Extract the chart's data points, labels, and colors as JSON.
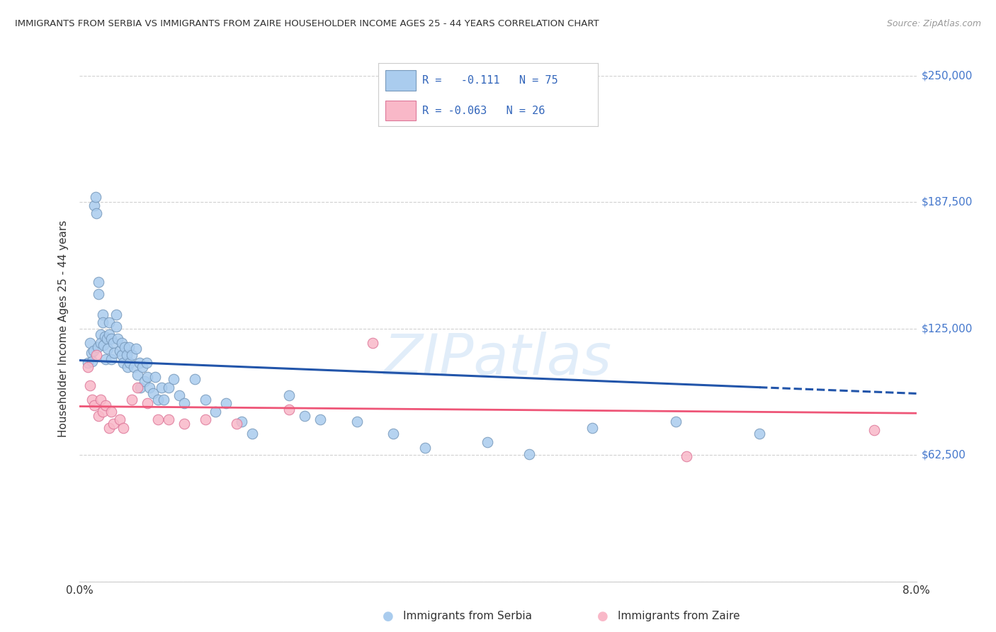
{
  "title": "IMMIGRANTS FROM SERBIA VS IMMIGRANTS FROM ZAIRE HOUSEHOLDER INCOME AGES 25 - 44 YEARS CORRELATION CHART",
  "source": "Source: ZipAtlas.com",
  "ylabel": "Householder Income Ages 25 - 44 years",
  "xlim": [
    0.0,
    0.08
  ],
  "ylim": [
    0,
    250000
  ],
  "yticks": [
    0,
    62500,
    125000,
    187500,
    250000
  ],
  "ytick_labels": [
    "",
    "$62,500",
    "$125,000",
    "$187,500",
    "$250,000"
  ],
  "xticks": [
    0.0,
    0.02,
    0.04,
    0.06,
    0.08
  ],
  "xtick_labels": [
    "0.0%",
    "",
    "",
    "",
    "8.0%"
  ],
  "serbia_color": "#aaccee",
  "serbia_edge": "#7799bb",
  "zaire_color": "#f9b8c8",
  "zaire_edge": "#dd7799",
  "serbia_line_color": "#2255aa",
  "zaire_line_color": "#ee5577",
  "serbia_R": -0.111,
  "serbia_N": 75,
  "zaire_R": -0.063,
  "zaire_N": 26,
  "watermark": "ZIPatlas",
  "scatter_size": 110,
  "serbia_x": [
    0.0008,
    0.001,
    0.0011,
    0.0012,
    0.0013,
    0.0014,
    0.0015,
    0.0016,
    0.0017,
    0.0018,
    0.0018,
    0.002,
    0.002,
    0.0022,
    0.0022,
    0.0023,
    0.0024,
    0.0025,
    0.0026,
    0.0027,
    0.0028,
    0.0028,
    0.003,
    0.003,
    0.0032,
    0.0033,
    0.0035,
    0.0035,
    0.0036,
    0.0038,
    0.004,
    0.004,
    0.0042,
    0.0043,
    0.0045,
    0.0046,
    0.0047,
    0.0048,
    0.005,
    0.0052,
    0.0054,
    0.0055,
    0.0057,
    0.0058,
    0.006,
    0.0062,
    0.0064,
    0.0065,
    0.0067,
    0.007,
    0.0072,
    0.0075,
    0.0078,
    0.008,
    0.0085,
    0.009,
    0.0095,
    0.01,
    0.011,
    0.012,
    0.013,
    0.014,
    0.0155,
    0.0165,
    0.02,
    0.0215,
    0.023,
    0.0265,
    0.03,
    0.033,
    0.039,
    0.043,
    0.049,
    0.057,
    0.065
  ],
  "serbia_y": [
    108000,
    118000,
    113000,
    109000,
    114000,
    186000,
    190000,
    182000,
    116000,
    142000,
    148000,
    122000,
    118000,
    132000,
    128000,
    117000,
    121000,
    110000,
    120000,
    115000,
    128000,
    122000,
    120000,
    110000,
    118000,
    113000,
    132000,
    126000,
    120000,
    114000,
    118000,
    112000,
    108000,
    116000,
    112000,
    106000,
    116000,
    108000,
    112000,
    106000,
    115000,
    102000,
    108000,
    96000,
    106000,
    99000,
    108000,
    101000,
    96000,
    93000,
    101000,
    90000,
    96000,
    90000,
    96000,
    100000,
    92000,
    88000,
    100000,
    90000,
    84000,
    88000,
    79000,
    73000,
    92000,
    82000,
    80000,
    79000,
    73000,
    66000,
    69000,
    63000,
    76000,
    79000,
    73000
  ],
  "zaire_x": [
    0.0008,
    0.001,
    0.0012,
    0.0014,
    0.0016,
    0.0018,
    0.002,
    0.0022,
    0.0025,
    0.0028,
    0.003,
    0.0032,
    0.0038,
    0.0042,
    0.005,
    0.0055,
    0.0065,
    0.0075,
    0.0085,
    0.01,
    0.012,
    0.015,
    0.02,
    0.028,
    0.058,
    0.076
  ],
  "zaire_y": [
    106000,
    97000,
    90000,
    87000,
    112000,
    82000,
    90000,
    84000,
    87000,
    76000,
    84000,
    78000,
    80000,
    76000,
    90000,
    96000,
    88000,
    80000,
    80000,
    78000,
    80000,
    78000,
    85000,
    118000,
    62000,
    75000
  ]
}
